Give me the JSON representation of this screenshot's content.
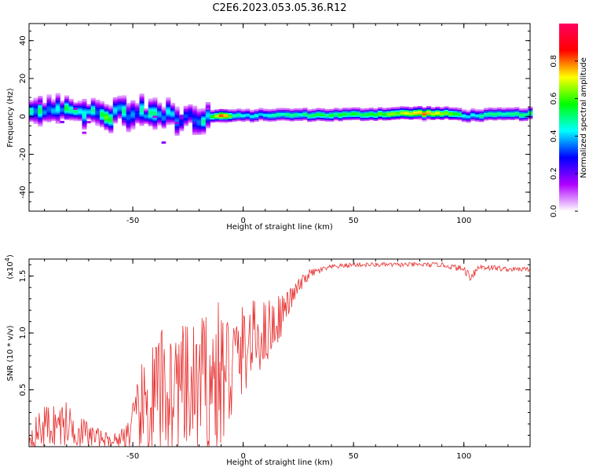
{
  "chart_data": [
    {
      "type": "heatmap",
      "title": "C2E6.2023.053.05.36.R12",
      "xlabel": "Height of straight line (km)",
      "ylabel": "Frequency (Hz)",
      "xlim": [
        -97,
        130
      ],
      "ylim": [
        -50,
        49
      ],
      "xticks": [
        -50,
        0,
        50,
        100
      ],
      "yticks": [
        -40,
        -20,
        0,
        20,
        40
      ],
      "colorbar": {
        "label": "Normalized spectral amplitude",
        "range": [
          0,
          1
        ],
        "ticks": [
          "0.0",
          "0.2",
          "0.4",
          "0.6",
          "0.8"
        ],
        "tick_values": [
          0.0,
          0.2,
          0.4,
          0.6,
          0.8
        ],
        "colors": [
          "#ffffff",
          "#b000ff",
          "#0000ff",
          "#00ffff",
          "#00ff00",
          "#ffff00",
          "#ff0000",
          "#ff0060"
        ]
      },
      "ridge": {
        "description_x": [
          -97,
          -60,
          -50,
          -40,
          -30,
          -20,
          -15,
          -10,
          -5,
          0,
          10,
          20,
          40,
          60,
          80,
          95,
          100,
          110,
          130
        ],
        "center_hz": [
          1.5,
          1,
          2,
          0,
          -1,
          -2,
          0,
          0,
          0,
          0,
          0.5,
          0.5,
          0.5,
          1,
          1.5,
          1,
          0,
          0.5,
          1
        ],
        "amplitude": [
          0.5,
          0.55,
          0.5,
          0.5,
          0.45,
          0.45,
          0.6,
          0.9,
          0.5,
          0.45,
          0.45,
          0.5,
          0.55,
          0.6,
          0.8,
          0.6,
          0.45,
          0.5,
          0.55
        ]
      }
    },
    {
      "type": "line",
      "xlabel": "Height of straight line (km)",
      "ylabel": "SNR (10 * v/v)",
      "exponent_label": "(x10",
      "exponent_sup": "4",
      "exponent_close": ")",
      "xlim": [
        -97,
        130
      ],
      "ylim": [
        0,
        1.65
      ],
      "xticks": [
        -50,
        0,
        50,
        100
      ],
      "yticks": [
        0.5,
        1.0,
        1.5
      ],
      "ytick_labels": [
        "0.5",
        "1.0",
        "1.5"
      ],
      "color": "#e83030",
      "series": [
        {
          "name": "SNR",
          "x": [
            -97,
            -90,
            -80,
            -70,
            -60,
            -55,
            -50,
            -45,
            -40,
            -35,
            -30,
            -25,
            -20,
            -15,
            -10,
            -5,
            0,
            5,
            10,
            15,
            20,
            25,
            30,
            40,
            50,
            60,
            70,
            80,
            90,
            100,
            103,
            107,
            110,
            120,
            130
          ],
          "base": [
            0.08,
            0.18,
            0.2,
            0.1,
            0.05,
            0.08,
            0.15,
            0.3,
            0.4,
            0.5,
            0.5,
            0.45,
            0.5,
            0.55,
            0.6,
            0.7,
            0.85,
            0.95,
            1.0,
            1.1,
            1.25,
            1.4,
            1.52,
            1.58,
            1.6,
            1.6,
            1.6,
            1.6,
            1.6,
            1.56,
            1.5,
            1.58,
            1.58,
            1.56,
            1.56
          ],
          "spread": [
            0.1,
            0.2,
            0.2,
            0.12,
            0.05,
            0.1,
            0.25,
            0.5,
            0.6,
            0.6,
            0.6,
            0.6,
            0.65,
            0.7,
            0.7,
            0.55,
            0.4,
            0.35,
            0.3,
            0.25,
            0.12,
            0.08,
            0.04,
            0.02,
            0.02,
            0.02,
            0.02,
            0.02,
            0.02,
            0.03,
            0.05,
            0.03,
            0.03,
            0.02,
            0.02
          ]
        }
      ]
    }
  ]
}
